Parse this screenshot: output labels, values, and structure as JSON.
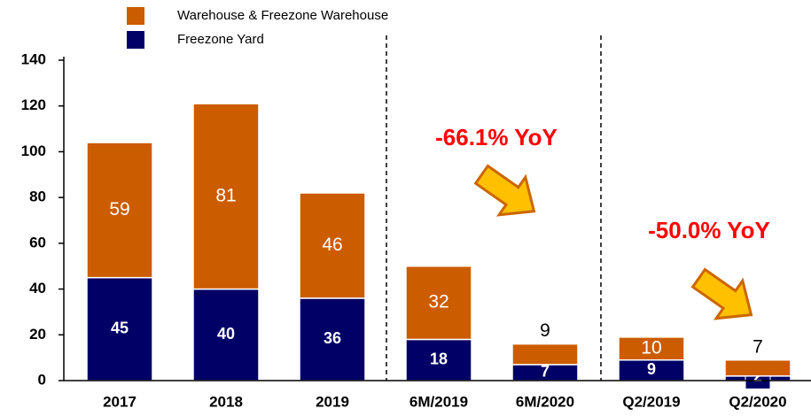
{
  "chart_data": {
    "type": "stacked_bar",
    "categories": [
      "2017",
      "2018",
      "2019",
      "6M/2019",
      "6M/2020",
      "Q2/2019",
      "Q2/2020"
    ],
    "series": [
      {
        "name": "Freezone Yard",
        "color": "#000066",
        "values": [
          45,
          40,
          36,
          18,
          7,
          9,
          2
        ]
      },
      {
        "name": "Warehouse & Freezone Warehouse",
        "color": "#cc5c00",
        "values": [
          59,
          81,
          46,
          32,
          9,
          10,
          7
        ]
      }
    ],
    "ylim": [
      0,
      140
    ],
    "yticks": [
      0,
      20,
      40,
      60,
      80,
      100,
      120,
      140
    ],
    "annotations": [
      "-66.1% YoY",
      "-50.0% YoY"
    ]
  }
}
